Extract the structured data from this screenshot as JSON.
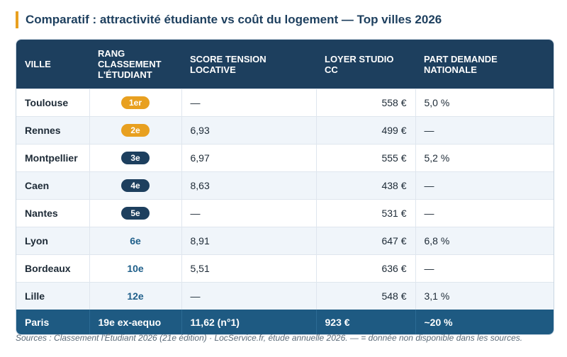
{
  "header": {
    "title": "Comparatif : attractivité étudiante vs coût du logement — Top villes 2026"
  },
  "table": {
    "columns": [
      "VILLE",
      "RANG CLASSEMENT L'ÉTUDIANT",
      "SCORE TENSION LOCATIVE",
      "LOYER STUDIO CC",
      "PART DEMANDE NATIONALE"
    ],
    "rows": [
      [
        "Toulouse",
        "1er",
        "—",
        "558 €",
        "5,0 %"
      ],
      [
        "Rennes",
        "2e",
        "6,93",
        "499 €",
        "—"
      ],
      [
        "Montpellier",
        "3e",
        "6,97",
        "555 €",
        "5,2 %"
      ],
      [
        "Caen",
        "4e",
        "8,63",
        "438 €",
        "—"
      ],
      [
        "Nantes",
        "5e",
        "—",
        "531 €",
        "—"
      ],
      [
        "Lyon",
        "6e",
        "8,91",
        "647 €",
        "6,8 %"
      ],
      [
        "Bordeaux",
        "10e",
        "5,51",
        "636 €",
        "—"
      ],
      [
        "Lille",
        "12e",
        "—",
        "548 €",
        "3,1 %"
      ]
    ],
    "footer": [
      "Paris",
      "19e ex-aequo",
      "11,62 (n°1)",
      "923 €",
      "~20 %"
    ]
  },
  "note": "Sources : Classement l'Étudiant 2026 (21e édition) · LocService.fr, étude annuelle 2026. — = donnée non disponible dans les sources."
}
